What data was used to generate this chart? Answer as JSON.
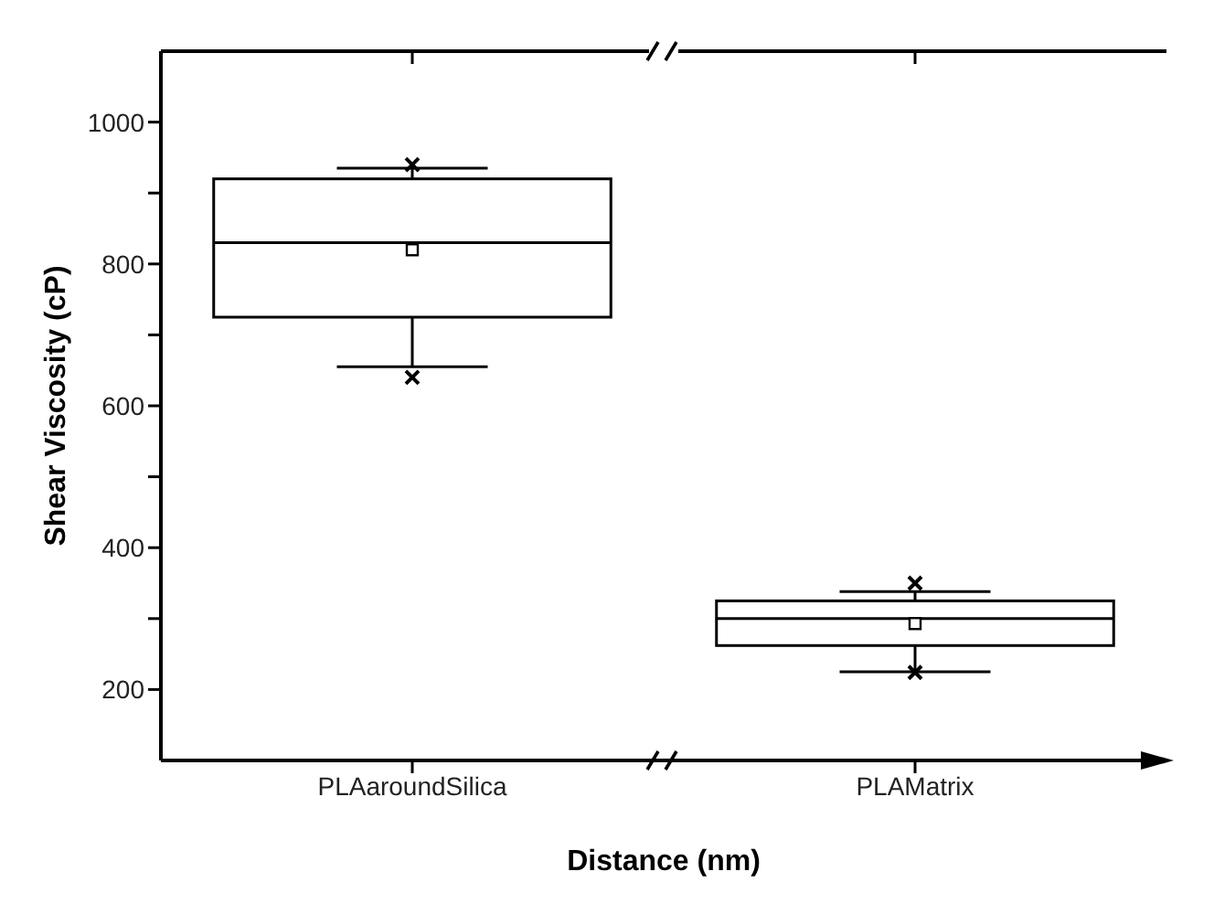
{
  "chart_data": {
    "type": "box",
    "xlabel": "Distance (nm)",
    "ylabel": "Shear Viscosity (cP)",
    "categories": [
      "PLAaroundSilica",
      "PLAMatrix"
    ],
    "color": "#000000",
    "boxes": [
      {
        "low": 655,
        "q1": 725,
        "median": 830,
        "q3": 920,
        "high": 935,
        "mean": 820,
        "outliers": [
          940,
          640
        ]
      },
      {
        "low": 225,
        "q1": 262,
        "median": 300,
        "q3": 325,
        "high": 338,
        "mean": 293,
        "outliers": [
          350,
          224
        ]
      }
    ],
    "ylim": [
      100,
      1100
    ],
    "yticks": [
      200,
      {
        "value": 300,
        "label": null
      },
      400,
      {
        "value": 500,
        "label": null
      },
      600,
      {
        "value": 700,
        "label": null
      },
      800,
      {
        "value": 900,
        "label": null
      },
      1000
    ]
  }
}
